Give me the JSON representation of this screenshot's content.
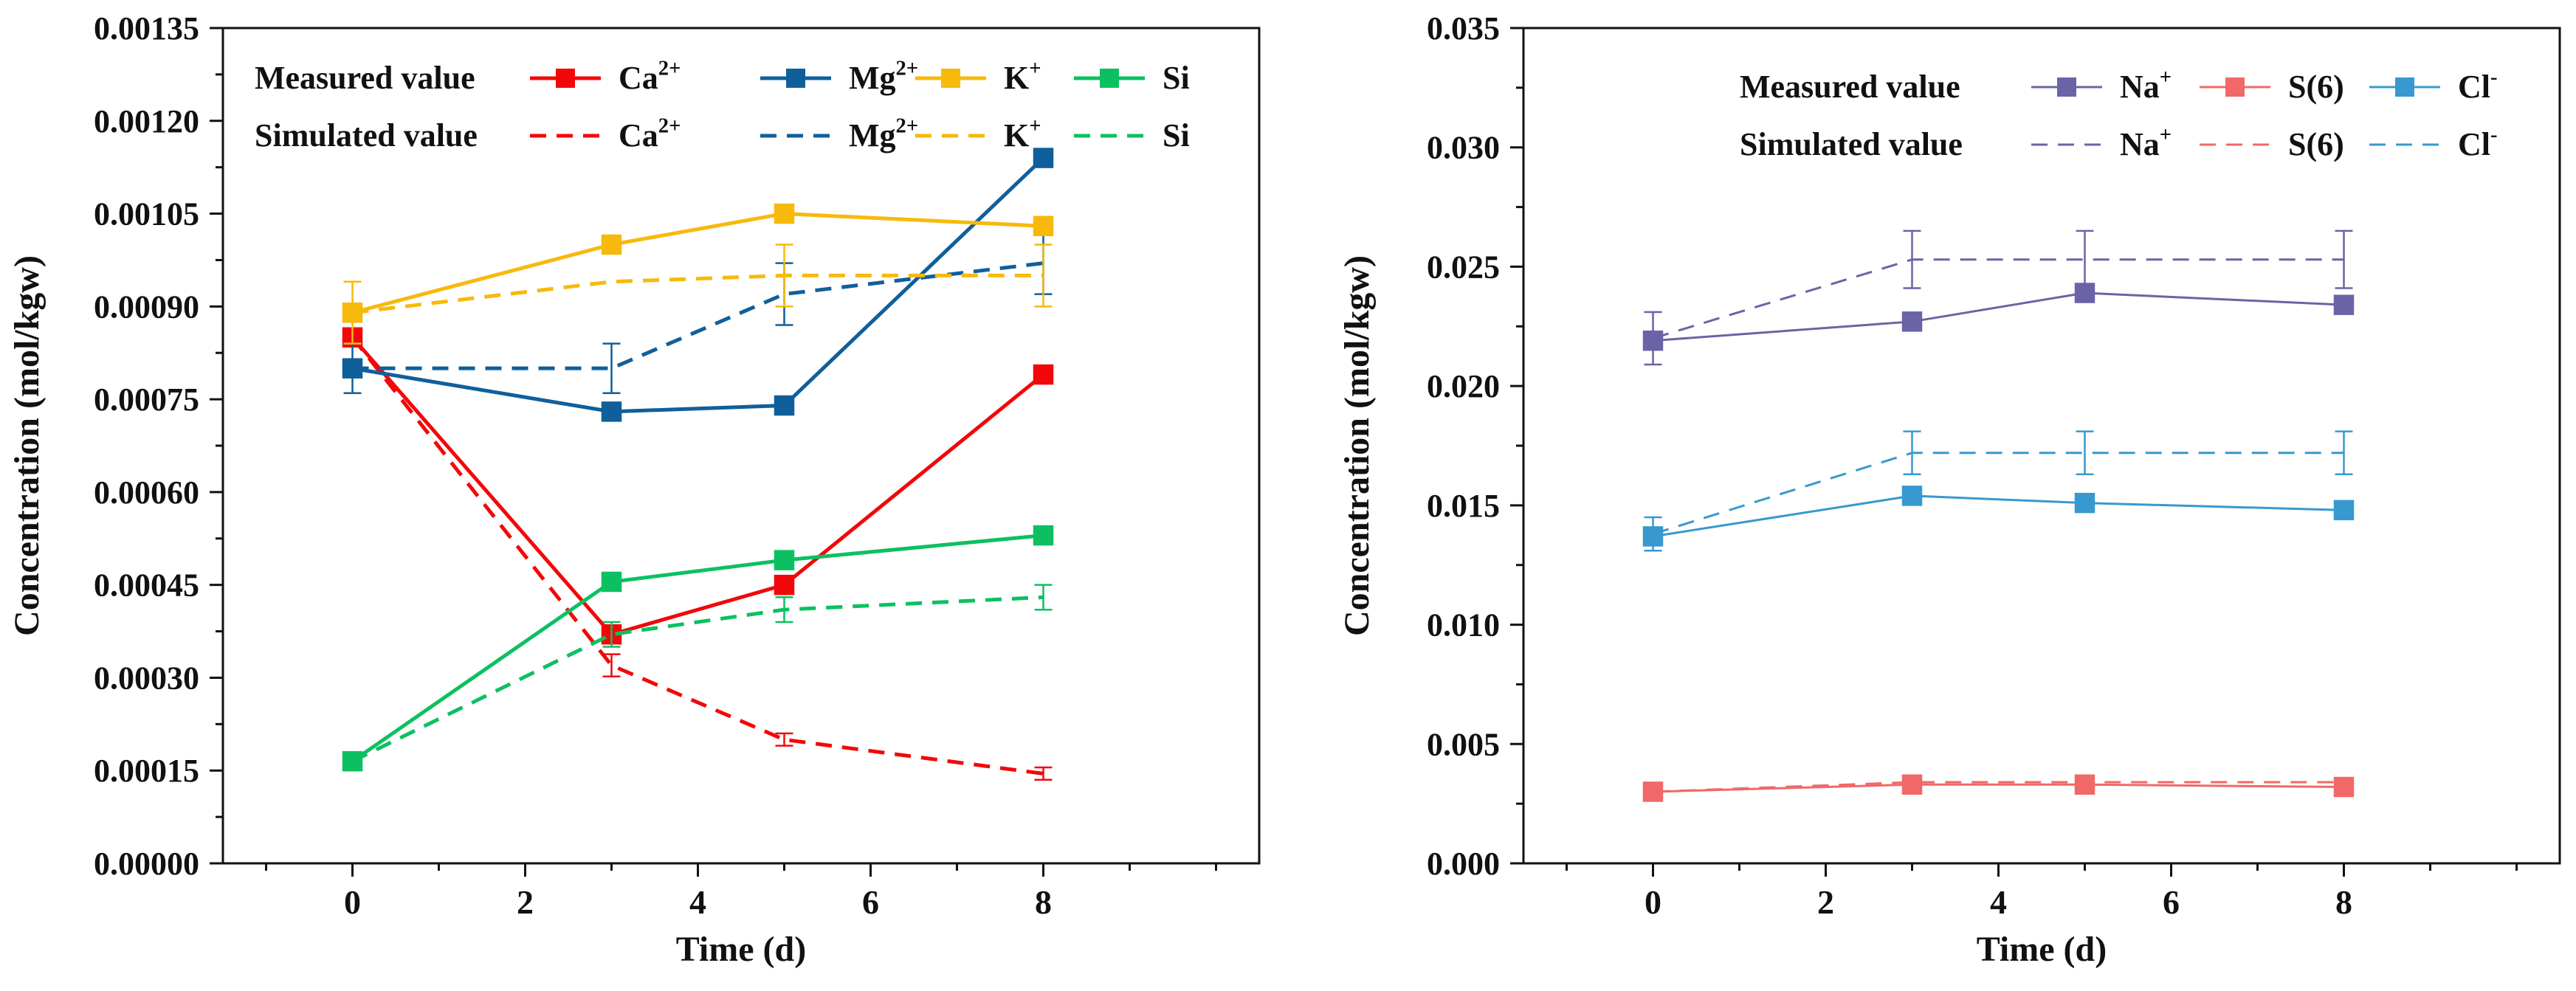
{
  "chart_data": [
    {
      "type": "line",
      "xlabel": "Time (d)",
      "ylabel": "Concentration (mol/kgw)",
      "xlim": [
        -1.5,
        10.5
      ],
      "ylim": [
        0,
        0.00135
      ],
      "x_ticks": [
        0,
        2,
        4,
        6,
        8
      ],
      "x_tick_labels": [
        "0",
        "2",
        "4",
        "6",
        "8"
      ],
      "y_ticks": [
        0,
        0.00015,
        0.0003,
        0.00045,
        0.0006,
        0.00075,
        0.0009,
        0.00105,
        0.0012,
        0.00135
      ],
      "y_tick_labels": [
        "0.00000",
        "0.00015",
        "0.00030",
        "0.00045",
        "0.00060",
        "0.00075",
        "0.00090",
        "0.00105",
        "0.00120",
        "0.00135"
      ],
      "x": [
        0,
        3,
        5,
        8
      ],
      "legend": {
        "measured_label": "Measured value",
        "simulated_label": "Simulated value",
        "placement": "top"
      },
      "series": [
        {
          "name": "Ca2+",
          "label_base": "Ca",
          "label_sup": "2+",
          "color": "#f2080a",
          "measured": [
            0.00085,
            0.00037,
            0.00045,
            0.00079
          ],
          "simulated": [
            0.00085,
            0.00032,
            0.0002,
            0.000145
          ],
          "simulated_error": [
            0,
            1.8e-05,
            1e-05,
            1e-05
          ]
        },
        {
          "name": "Mg2+",
          "label_base": "Mg",
          "label_sup": "2+",
          "color": "#0f5f9b",
          "measured": [
            0.0008,
            0.00073,
            0.00074,
            0.00114
          ],
          "simulated": [
            0.0008,
            0.0008,
            0.00092,
            0.00097
          ],
          "simulated_error": [
            4e-05,
            4e-05,
            5e-05,
            5e-05
          ]
        },
        {
          "name": "K+",
          "label_base": "K",
          "label_sup": "+",
          "color": "#f7b90b",
          "measured": [
            0.00089,
            0.001,
            0.00105,
            0.00103
          ],
          "simulated": [
            0.00089,
            0.00094,
            0.00095,
            0.00095
          ],
          "simulated_error": [
            5e-05,
            0,
            5e-05,
            5e-05
          ]
        },
        {
          "name": "Si",
          "label_base": "Si",
          "label_sup": "",
          "color": "#0cc061",
          "measured": [
            0.000165,
            0.000455,
            0.00049,
            0.00053
          ],
          "simulated": [
            0.000165,
            0.00037,
            0.00041,
            0.00043
          ],
          "simulated_error": [
            0,
            2e-05,
            2e-05,
            2e-05
          ]
        }
      ]
    },
    {
      "type": "line",
      "xlabel": "Time (d)",
      "ylabel": "Concentration (mol/kgw)",
      "xlim": [
        -1.5,
        10.5
      ],
      "ylim": [
        0,
        0.035
      ],
      "x_ticks": [
        0,
        2,
        4,
        6,
        8
      ],
      "x_tick_labels": [
        "0",
        "2",
        "4",
        "6",
        "8"
      ],
      "y_ticks": [
        0,
        0.005,
        0.01,
        0.015,
        0.02,
        0.025,
        0.03,
        0.035
      ],
      "y_tick_labels": [
        "0.000",
        "0.005",
        "0.010",
        "0.015",
        "0.020",
        "0.025",
        "0.030",
        "0.035"
      ],
      "x": [
        0,
        3,
        5,
        8
      ],
      "legend": {
        "measured_label": "Measured value",
        "simulated_label": "Simulated value",
        "placement": "top-right"
      },
      "series": [
        {
          "name": "Na+",
          "label_base": "Na",
          "label_sup": "+",
          "color": "#6a64a6",
          "measured": [
            0.0219,
            0.0227,
            0.0239,
            0.0234
          ],
          "simulated": [
            0.022,
            0.0253,
            0.0253,
            0.0253
          ],
          "simulated_error": [
            0.0011,
            0.0012,
            0.0012,
            0.0012
          ]
        },
        {
          "name": "S(6)",
          "label_base": "S(6)",
          "label_sup": "",
          "color": "#f06868",
          "measured": [
            0.003,
            0.0033,
            0.0033,
            0.0032
          ],
          "simulated": [
            0.003,
            0.0034,
            0.0034,
            0.0034
          ],
          "simulated_error": [
            0,
            0,
            0,
            0
          ]
        },
        {
          "name": "Cl-",
          "label_base": "Cl",
          "label_sup": "-",
          "color": "#3799cf",
          "measured": [
            0.0137,
            0.0154,
            0.0151,
            0.0148
          ],
          "simulated": [
            0.0138,
            0.0172,
            0.0172,
            0.0172
          ],
          "simulated_error": [
            0.0007,
            0.0009,
            0.0009,
            0.0009
          ]
        }
      ]
    }
  ]
}
